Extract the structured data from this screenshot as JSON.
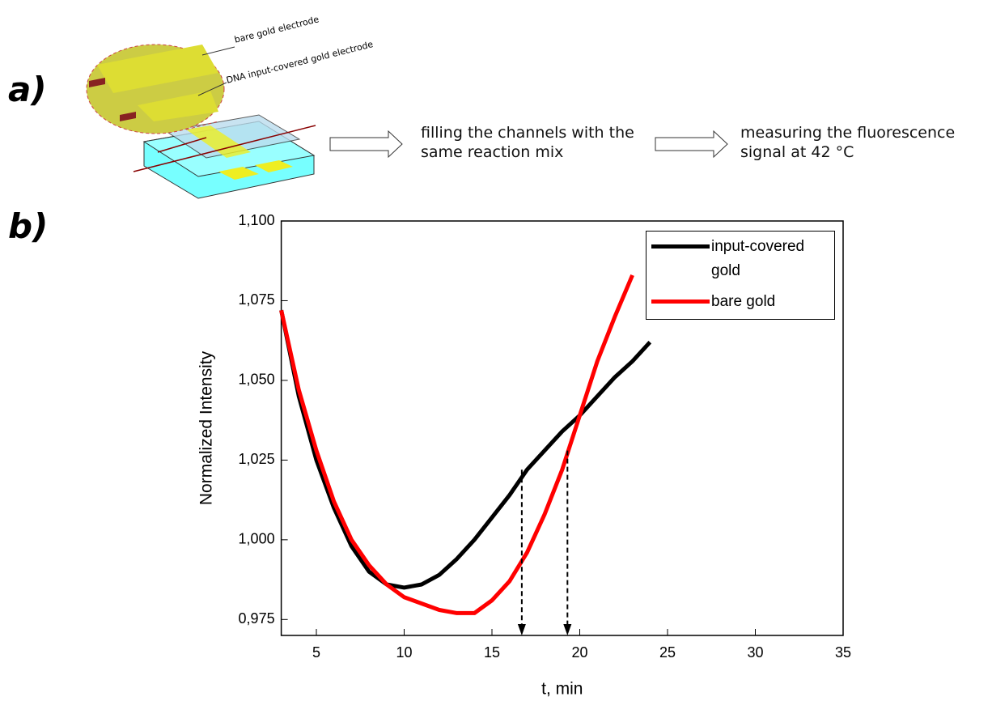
{
  "figure": {
    "panel_labels": [
      "a)",
      "b)"
    ],
    "callouts": [
      "bare gold electrode",
      "DNA input-covered gold electrode"
    ],
    "steps": [
      "filling the channels with the same reaction mix",
      "measuring the fluorescence signal at 42 °C"
    ]
  },
  "chart_data": {
    "type": "line",
    "x_label": "t, min",
    "y_label": "Normalized Intensity",
    "xlim": [
      3,
      35
    ],
    "xticks": [
      5,
      10,
      15,
      20,
      25,
      30,
      35
    ],
    "ylim": [
      0.97,
      1.1
    ],
    "yticks": [
      {
        "value": 0.975,
        "label": "0,975"
      },
      {
        "value": 1.0,
        "label": "1,000"
      },
      {
        "value": 1.025,
        "label": "1,025"
      },
      {
        "value": 1.05,
        "label": "1,050"
      },
      {
        "value": 1.075,
        "label": "1,075"
      },
      {
        "value": 1.1,
        "label": "1,100"
      }
    ],
    "legend": "upper right",
    "series": [
      {
        "name": "input-covered gold",
        "color": "#000000",
        "x": [
          3,
          4,
          5,
          6,
          7,
          8,
          9,
          10,
          11,
          12,
          13,
          14,
          15,
          16,
          17,
          18,
          19,
          20,
          21,
          22,
          23,
          24
        ],
        "values": [
          1.072,
          1.045,
          1.025,
          1.01,
          0.998,
          0.99,
          0.986,
          0.985,
          0.986,
          0.989,
          0.994,
          1.0,
          1.007,
          1.014,
          1.022,
          1.028,
          1.034,
          1.039,
          1.045,
          1.051,
          1.056,
          1.062
        ]
      },
      {
        "name": "bare gold",
        "color": "#ff0000",
        "x": [
          3,
          4,
          5,
          6,
          7,
          8,
          9,
          10,
          11,
          12,
          13,
          14,
          15,
          16,
          17,
          18,
          19,
          20,
          21,
          22,
          23
        ],
        "values": [
          1.072,
          1.047,
          1.028,
          1.012,
          1.0,
          0.992,
          0.986,
          0.982,
          0.98,
          0.978,
          0.977,
          0.977,
          0.981,
          0.987,
          0.996,
          1.008,
          1.022,
          1.039,
          1.056,
          1.07,
          1.083
        ]
      }
    ],
    "arrows": [
      {
        "x": 16.7,
        "y": 1.022
      },
      {
        "x": 19.3,
        "y": 1.028
      }
    ]
  }
}
